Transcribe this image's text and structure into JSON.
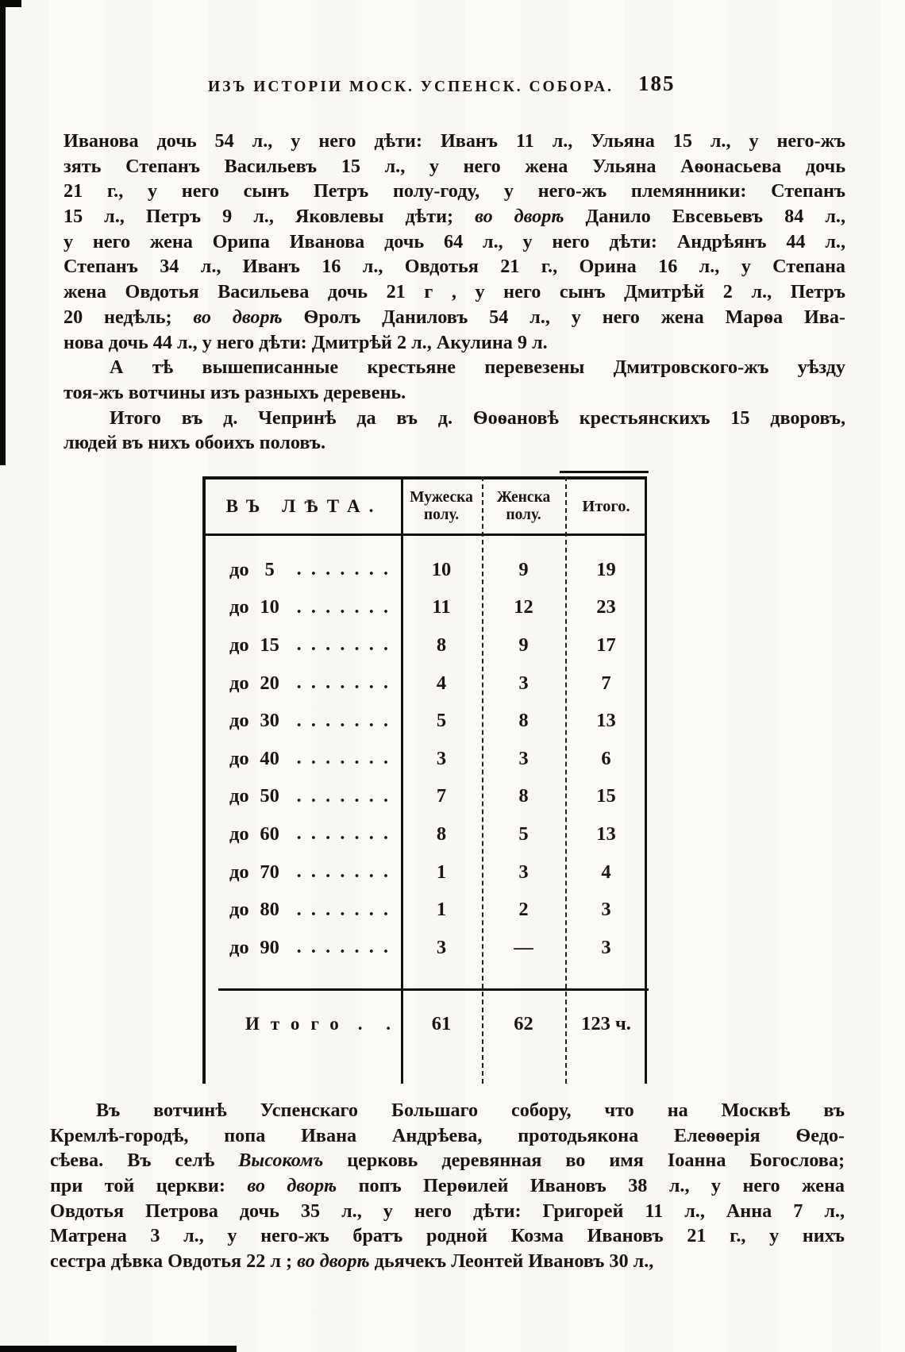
{
  "colors": {
    "ink": "#181512",
    "paper": "#fbfaf7"
  },
  "page_header": {
    "title": "ИЗЪ ИСТОРІИ МОСК. УСПЕНСК. СОБОРА.",
    "page_number": "185"
  },
  "top_text": {
    "paragraphs": [
      {
        "indent": false,
        "lines": [
          {
            "runs": [
              {
                "t": "Иванова дочь 54 л., у него дѣти: Иванъ 11 л., Ульяна 15 л., у него-жъ"
              }
            ]
          },
          {
            "runs": [
              {
                "t": "зять Степанъ Васильевъ 15 л., у него жена Ульяна Аѳонасьева дочь"
              }
            ]
          },
          {
            "runs": [
              {
                "t": "21 г., у него сынъ Петръ полу-году, у него-жъ племянники: Степанъ"
              }
            ]
          },
          {
            "runs": [
              {
                "t": "15 л., Петръ 9 л., Яковлевы дѣти; "
              },
              {
                "t": "во дворѣ",
                "i": true
              },
              {
                "t": " Данило Евсевьевъ 84 л.,"
              }
            ]
          },
          {
            "runs": [
              {
                "t": "у него жена Орипа Иванова дочь 64 л., у него дѣти: Андрѣянъ 44 л.,"
              }
            ]
          },
          {
            "runs": [
              {
                "t": "Степанъ 34 л., Иванъ 16 л., Овдотья 21 г., Орина 16 л., у Степана"
              }
            ]
          },
          {
            "runs": [
              {
                "t": "жена Овдотья Васильева дочь 21 г , у него сынъ Дмитрѣй 2 л., Петръ"
              }
            ]
          },
          {
            "runs": [
              {
                "t": "20 недѣль; "
              },
              {
                "t": "во дворѣ",
                "i": true
              },
              {
                "t": " Ѳролъ Даниловъ 54 л., у него жена Марѳа Ива-"
              }
            ]
          },
          {
            "runs": [
              {
                "t": "нова дочь 44 л., у него дѣти: Дмитрѣй 2 л., Акулина 9 л."
              }
            ],
            "last": true
          }
        ]
      },
      {
        "indent": true,
        "lines": [
          {
            "runs": [
              {
                "t": "А тѣ вышеписанные крестьяне перевезены Дмитровского-жъ уѣзду"
              }
            ]
          },
          {
            "runs": [
              {
                "t": "тоя-жъ вотчины изъ разныхъ деревень."
              }
            ],
            "last": true
          }
        ]
      },
      {
        "indent": true,
        "lines": [
          {
            "runs": [
              {
                "t": "Итого въ д. Чепринѣ да въ д. Ѳоѳановѣ крестьянскихъ 15 дворовъ,"
              }
            ]
          },
          {
            "runs": [
              {
                "t": "людей въ нихъ обоихъ половъ."
              }
            ],
            "last": true
          }
        ]
      }
    ]
  },
  "age_table": {
    "columns": {
      "age": "ВЪ ЛѢТА.",
      "male": "Мужеска полу.",
      "female": "Женска полу.",
      "total": "Итого."
    },
    "dot_leader": ". . . . . . .",
    "rows": [
      {
        "age_prefix": "до",
        "age": "5",
        "male": "10",
        "female": "9",
        "total": "19"
      },
      {
        "age_prefix": "до",
        "age": "10",
        "male": "11",
        "female": "12",
        "total": "23"
      },
      {
        "age_prefix": "до",
        "age": "15",
        "male": "8",
        "female": "9",
        "total": "17"
      },
      {
        "age_prefix": "до",
        "age": "20",
        "male": "4",
        "female": "3",
        "total": "7"
      },
      {
        "age_prefix": "до",
        "age": "30",
        "male": "5",
        "female": "8",
        "total": "13"
      },
      {
        "age_prefix": "до",
        "age": "40",
        "male": "3",
        "female": "3",
        "total": "6"
      },
      {
        "age_prefix": "до",
        "age": "50",
        "male": "7",
        "female": "8",
        "total": "15"
      },
      {
        "age_prefix": "до",
        "age": "60",
        "male": "8",
        "female": "5",
        "total": "13"
      },
      {
        "age_prefix": "до",
        "age": "70",
        "male": "1",
        "female": "3",
        "total": "4"
      },
      {
        "age_prefix": "до",
        "age": "80",
        "male": "1",
        "female": "2",
        "total": "3"
      },
      {
        "age_prefix": "до",
        "age": "90",
        "male": "3",
        "female": "—",
        "total": "3"
      }
    ],
    "totals": {
      "label": "Итого",
      "dots": ". .",
      "male": "61",
      "female": "62",
      "total": "123 ч."
    }
  },
  "bottom_text": {
    "paragraphs": [
      {
        "indent": true,
        "lines": [
          {
            "runs": [
              {
                "t": "Въ вотчинѣ Успенскаго Большаго собору, что на Москвѣ въ"
              }
            ]
          },
          {
            "runs": [
              {
                "t": "Кремлѣ-городѣ, попа Ивана Андрѣева, протодьякона Елеѳѳерія Ѳедо-"
              }
            ]
          },
          {
            "runs": [
              {
                "t": "сѣева. Въ селѣ "
              },
              {
                "t": "Высокомъ",
                "i": true
              },
              {
                "t": " церковь деревянная во имя Іоанна Богослова;"
              }
            ]
          },
          {
            "runs": [
              {
                "t": "при той церкви: "
              },
              {
                "t": "во дворѣ",
                "i": true
              },
              {
                "t": " попъ Перѳилей Ивановъ 38 л., у него жена"
              }
            ]
          },
          {
            "runs": [
              {
                "t": "Овдотья Петрова дочь 35 л., у него дѣти: Григорей 11 л., Анна 7 л.,"
              }
            ]
          },
          {
            "runs": [
              {
                "t": "Матрена 3 л., у него-жъ братъ родной Козма Ивановъ 21 г., у нихъ"
              }
            ]
          },
          {
            "runs": [
              {
                "t": "сестра дѣвка Овдотья 22 л ; "
              },
              {
                "t": "во дворѣ",
                "i": true
              },
              {
                "t": " дьячекъ Леонтей Ивановъ 30 л.,"
              }
            ],
            "last": true
          }
        ]
      }
    ]
  }
}
